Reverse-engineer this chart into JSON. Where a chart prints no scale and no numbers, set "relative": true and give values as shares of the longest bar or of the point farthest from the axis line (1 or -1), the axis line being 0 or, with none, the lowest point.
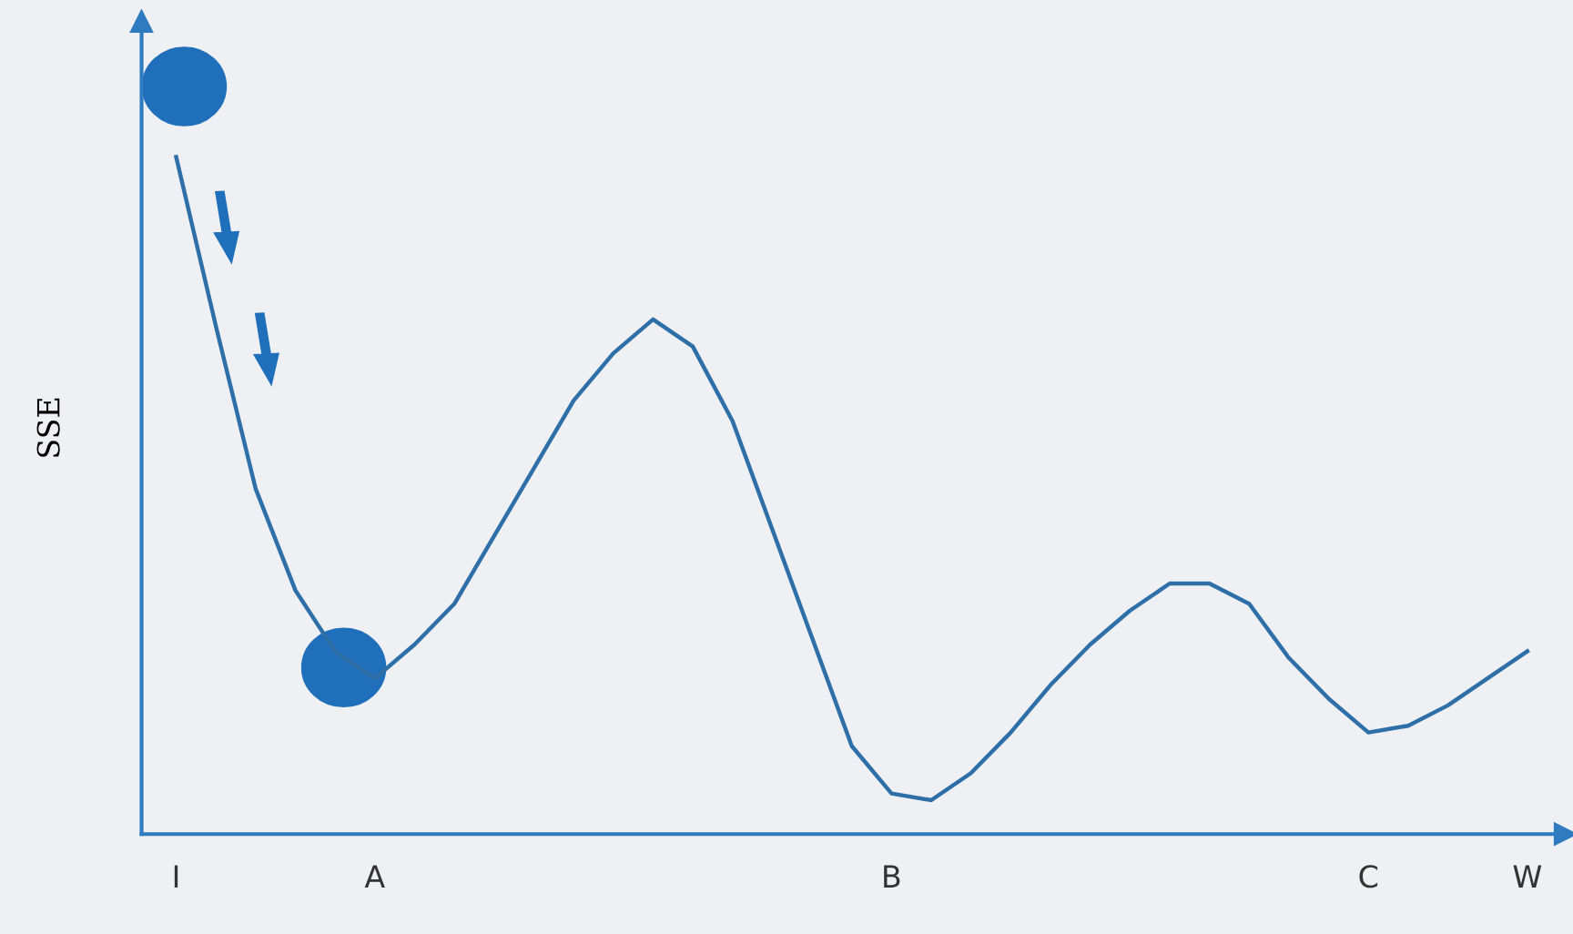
{
  "chart_data": {
    "type": "line",
    "relative": true,
    "ylabel": "SSE",
    "categories": [
      "I",
      null,
      null,
      null,
      null,
      "A",
      null,
      null,
      null,
      null,
      null,
      null,
      null,
      null,
      null,
      null,
      null,
      null,
      "B",
      null,
      null,
      null,
      null,
      null,
      null,
      null,
      null,
      null,
      null,
      null,
      "C",
      null,
      null,
      null,
      "W"
    ],
    "series": [
      {
        "color": "#2f6fa8",
        "values": [
          1.0,
          0.75,
          0.51,
          0.36,
          0.27,
          0.23,
          0.28,
          0.34,
          0.44,
          0.54,
          0.64,
          0.71,
          0.76,
          0.72,
          0.61,
          0.45,
          0.29,
          0.13,
          0.06,
          0.05,
          0.09,
          0.15,
          0.22,
          0.28,
          0.33,
          0.37,
          0.37,
          0.34,
          0.26,
          0.2,
          0.15,
          0.16,
          0.19,
          0.23,
          0.27
        ]
      }
    ],
    "grid": false,
    "marker": "none",
    "line_style": "solid"
  }
}
